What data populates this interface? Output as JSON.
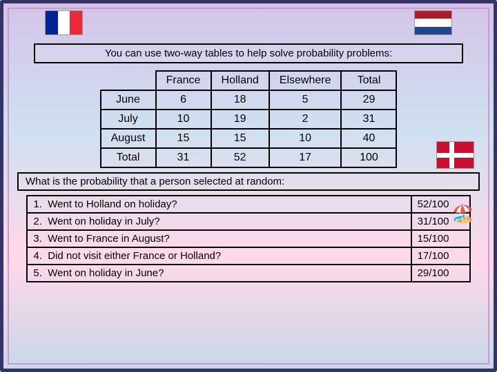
{
  "header": "You can use two-way tables to help solve probability problems:",
  "table": {
    "columns": [
      "France",
      "Holland",
      "Elsewhere",
      "Total"
    ],
    "rows": [
      {
        "label": "June",
        "cells": [
          "6",
          "18",
          "5",
          "29"
        ]
      },
      {
        "label": "July",
        "cells": [
          "10",
          "19",
          "2",
          "31"
        ]
      },
      {
        "label": "August",
        "cells": [
          "15",
          "15",
          "10",
          "40"
        ]
      },
      {
        "label": "Total",
        "cells": [
          "31",
          "52",
          "17",
          "100"
        ]
      }
    ],
    "border_color": "#000000",
    "fontsize": 16,
    "cell_padding": "4px 14px"
  },
  "subheader": "What is the probability that a person selected at random:",
  "questions": [
    {
      "n": "1.",
      "q": "Went to Holland on holiday?",
      "a": "52/100"
    },
    {
      "n": "2.",
      "q": "Went on holiday in July?",
      "a": "31/100"
    },
    {
      "n": "3.",
      "q": "Went to France in August?",
      "a": "15/100"
    },
    {
      "n": "4.",
      "q": "Did not visit either France or Holland?",
      "a": "17/100"
    },
    {
      "n": "5.",
      "q": "Went on holiday in June?",
      "a": "29/100"
    }
  ],
  "flags": {
    "france": {
      "colors": [
        "#002395",
        "#ffffff",
        "#ed2939"
      ],
      "orientation": "vertical"
    },
    "holland": {
      "colors": [
        "#ae1c28",
        "#ffffff",
        "#21468b"
      ],
      "orientation": "horizontal"
    },
    "denmark": {
      "bg": "#c8102e",
      "cross": "#ffffff"
    }
  },
  "style": {
    "outer_border": "#333366",
    "inner_border": "#cc99cc",
    "font_family": "Comic Sans MS"
  }
}
